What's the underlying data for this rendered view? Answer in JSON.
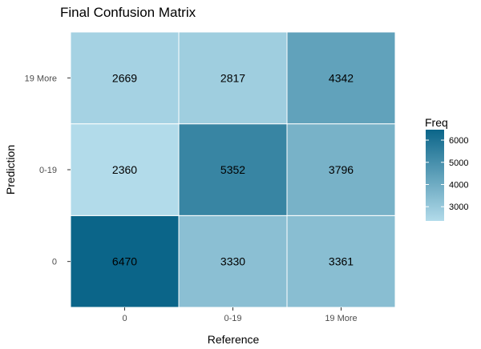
{
  "chart_data": {
    "type": "heatmap",
    "title": "Final Confusion Matrix",
    "xlabel": "Reference",
    "ylabel": "Prediction",
    "x_categories": [
      "0",
      "0-19",
      "19 More"
    ],
    "y_categories": [
      "0",
      "0-19",
      "19 More"
    ],
    "values": [
      [
        6470,
        3330,
        3361
      ],
      [
        2360,
        5352,
        3796
      ],
      [
        2669,
        2817,
        4342
      ]
    ],
    "value_layout": "values[y_index][x_index]",
    "legend": {
      "title": "Freq",
      "ticks": [
        3000,
        4000,
        5000,
        6000
      ],
      "placement": "right",
      "range": [
        2360,
        6470
      ]
    },
    "colors": {
      "low": "#b2dbea",
      "high": "#0b6589",
      "grid": "#ffffff"
    },
    "grid": true
  }
}
